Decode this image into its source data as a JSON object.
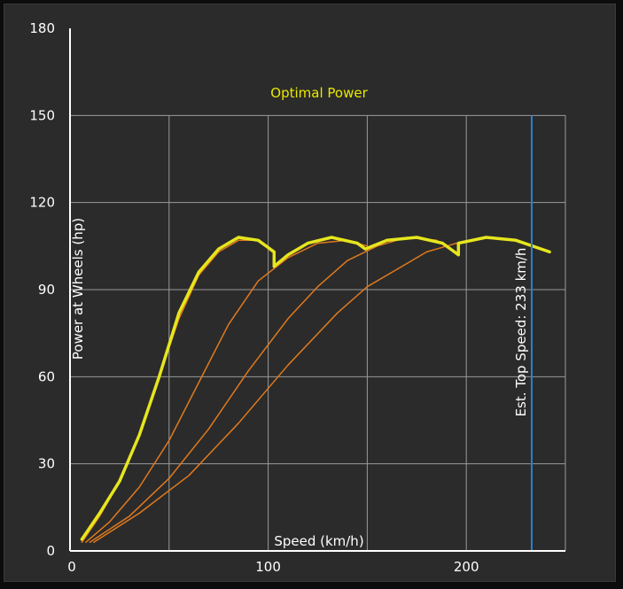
{
  "chart_data": {
    "type": "line",
    "title": "Optimal Power",
    "xlabel": "Speed (km/h)",
    "ylabel": "Power at Wheels (hp)",
    "xlim": [
      0,
      250
    ],
    "ylim": [
      0,
      180
    ],
    "x_ticks": [
      0,
      100,
      200
    ],
    "y_ticks": [
      0,
      30,
      60,
      90,
      120,
      150,
      180
    ],
    "grid": true,
    "colors": {
      "optimal": "#e6e61e",
      "gear": "#e07a1e",
      "marker": "#2a7fd4",
      "grid": "#9a9a9a",
      "axis": "#ffffff"
    },
    "annotation": {
      "text": "Est. Top Speed: 233 km/h",
      "x": 233
    },
    "series": [
      {
        "kind": "gear",
        "points": [
          [
            6,
            3
          ],
          [
            15,
            12
          ],
          [
            25,
            24
          ],
          [
            35,
            40
          ],
          [
            45,
            60
          ],
          [
            55,
            80
          ],
          [
            65,
            95
          ],
          [
            75,
            103
          ],
          [
            85,
            107
          ],
          [
            95,
            107
          ],
          [
            102,
            103
          ]
        ]
      },
      {
        "kind": "gear",
        "points": [
          [
            8,
            3
          ],
          [
            20,
            10
          ],
          [
            35,
            22
          ],
          [
            50,
            38
          ],
          [
            65,
            58
          ],
          [
            80,
            78
          ],
          [
            95,
            93
          ],
          [
            110,
            101
          ],
          [
            125,
            106
          ],
          [
            140,
            107
          ],
          [
            150,
            105
          ]
        ]
      },
      {
        "kind": "gear",
        "points": [
          [
            10,
            3
          ],
          [
            30,
            12
          ],
          [
            50,
            25
          ],
          [
            70,
            42
          ],
          [
            90,
            62
          ],
          [
            110,
            80
          ],
          [
            125,
            91
          ],
          [
            140,
            100
          ],
          [
            155,
            105
          ],
          [
            170,
            108
          ],
          [
            185,
            107
          ],
          [
            196,
            102
          ]
        ]
      },
      {
        "kind": "gear",
        "points": [
          [
            12,
            3
          ],
          [
            35,
            13
          ],
          [
            60,
            26
          ],
          [
            85,
            44
          ],
          [
            110,
            64
          ],
          [
            135,
            82
          ],
          [
            150,
            91
          ],
          [
            165,
            97
          ],
          [
            180,
            103
          ],
          [
            195,
            106
          ],
          [
            210,
            108
          ],
          [
            225,
            107
          ],
          [
            242,
            103
          ]
        ]
      },
      {
        "kind": "optimal",
        "points": [
          [
            6,
            4
          ],
          [
            15,
            13
          ],
          [
            25,
            24
          ],
          [
            35,
            40
          ],
          [
            45,
            60
          ],
          [
            55,
            82
          ],
          [
            65,
            96
          ],
          [
            75,
            104
          ],
          [
            85,
            108
          ],
          [
            95,
            107
          ],
          [
            103,
            103
          ],
          [
            103,
            98
          ],
          [
            110,
            102
          ],
          [
            120,
            106
          ],
          [
            132,
            108
          ],
          [
            145,
            106
          ],
          [
            149,
            104
          ],
          [
            160,
            107
          ],
          [
            175,
            108
          ],
          [
            188,
            106
          ],
          [
            196,
            102
          ],
          [
            196,
            106
          ],
          [
            210,
            108
          ],
          [
            225,
            107
          ],
          [
            242,
            103
          ]
        ]
      }
    ]
  }
}
